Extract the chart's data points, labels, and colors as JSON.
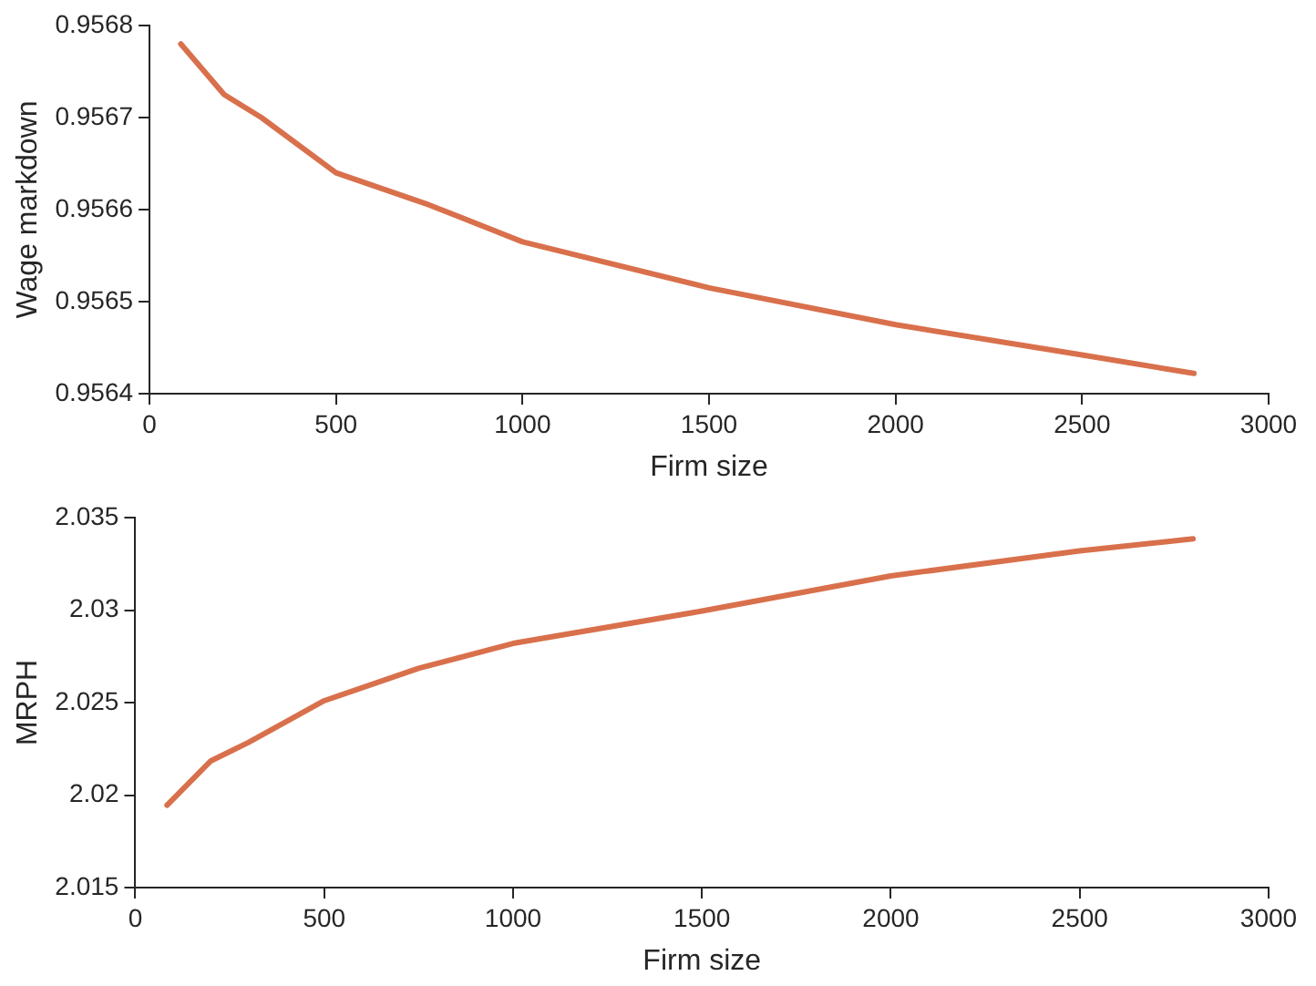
{
  "chart_data": [
    {
      "type": "line",
      "xlabel": "Firm size",
      "ylabel": "Wage markdown",
      "grid": false,
      "xlim": [
        0,
        3000
      ],
      "xticks": [
        0,
        500,
        1000,
        1500,
        2000,
        2500,
        3000
      ],
      "ylim": [
        0.9564,
        0.9568
      ],
      "yticks": [
        0.9564,
        0.9565,
        0.9566,
        0.9567,
        0.9568
      ],
      "series": [
        {
          "color": "#d9704c",
          "x": [
            84,
            200,
            300,
            500,
            750,
            1000,
            1500,
            2000,
            2500,
            2800
          ],
          "values": [
            0.95678,
            0.956725,
            0.9567,
            0.95664,
            0.956605,
            0.956565,
            0.956515,
            0.956475,
            0.956442,
            0.956422
          ]
        }
      ]
    },
    {
      "type": "line",
      "xlabel": "Firm size",
      "ylabel": "MRPH",
      "grid": false,
      "xlim": [
        0,
        3000
      ],
      "xticks": [
        0,
        500,
        1000,
        1500,
        2000,
        2500,
        3000
      ],
      "ylim": [
        2.015,
        2.035
      ],
      "yticks": [
        2.015,
        2.02,
        2.025,
        2.03,
        2.035
      ],
      "series": [
        {
          "color": "#d9704c",
          "x": [
            84,
            200,
            300,
            500,
            750,
            1000,
            1500,
            2000,
            2500,
            2800
          ],
          "values": [
            2.01945,
            2.02185,
            2.02285,
            2.0251,
            2.02685,
            2.0282,
            2.02995,
            2.03185,
            2.0332,
            2.03385
          ]
        }
      ]
    }
  ]
}
